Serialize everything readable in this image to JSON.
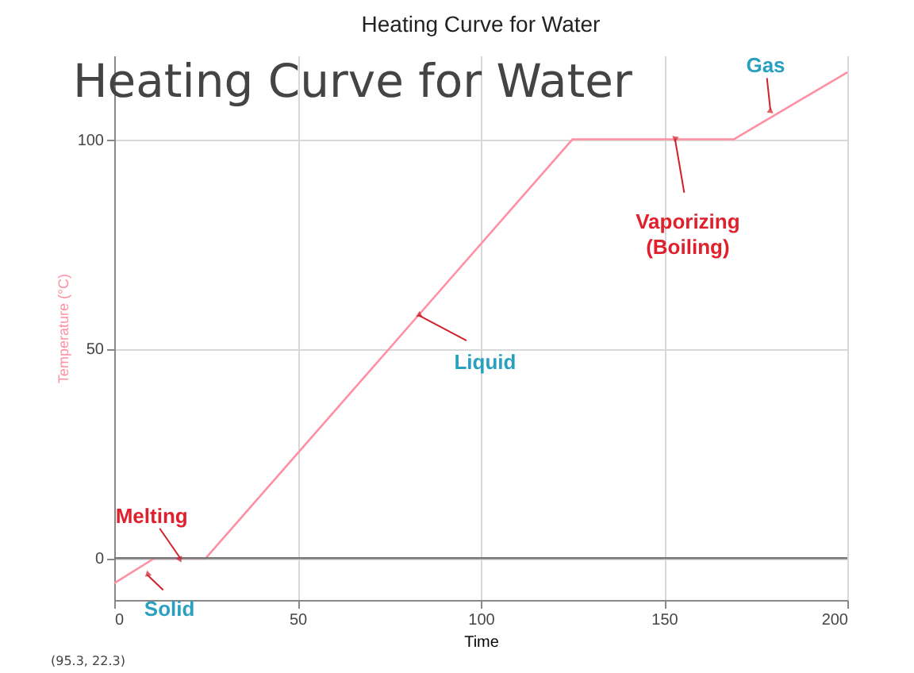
{
  "chart_data": {
    "type": "line",
    "title": "Heating Curve for Water",
    "xlabel": "Time",
    "ylabel": "Temperature (°C)",
    "x": [
      0,
      11,
      25,
      125,
      169,
      200
    ],
    "series": [
      {
        "color": "#ff8fa3",
        "values": [
          -6,
          0,
          0,
          100,
          100,
          116
        ]
      }
    ],
    "xlim": [
      0,
      200
    ],
    "xticks": [
      0,
      50,
      100,
      150,
      200
    ],
    "ylim": [
      -10,
      120
    ],
    "yticks": [
      0,
      50,
      100
    ],
    "grid": true,
    "marker": "none",
    "ref_lines": [
      {
        "axis": "y",
        "value": 0,
        "color": "#777777"
      }
    ],
    "annotations": [
      "Heating Curve for Water",
      {
        "text": "Gas",
        "x": 179,
        "y": 107
      },
      {
        "text": "Vaporizing\n(Boiling)",
        "x": 153,
        "y": 100
      },
      {
        "text": "Liquid",
        "x": 83,
        "y": 58
      },
      {
        "text": "Melting",
        "x": 18,
        "y": 0
      },
      {
        "text": "Solid",
        "x": 9,
        "y": -4
      },
      "(95.3, 22.3)"
    ]
  }
}
